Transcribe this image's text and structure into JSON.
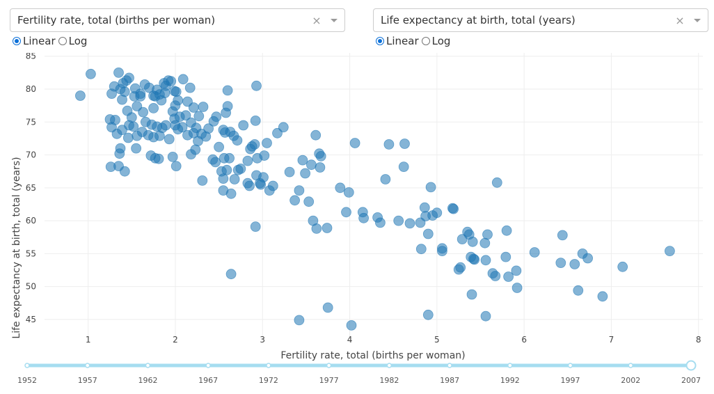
{
  "controls": {
    "x_dropdown": {
      "value": "Fertility rate, total (births per woman)",
      "clear": "×"
    },
    "y_dropdown": {
      "value": "Life expectancy at birth, total (years)",
      "clear": "×"
    },
    "x_scale": {
      "linear_label": "Linear",
      "log_label": "Log",
      "selected": "Linear"
    },
    "y_scale": {
      "linear_label": "Linear",
      "log_label": "Log",
      "selected": "Linear"
    }
  },
  "colors": {
    "point": "#1f77b4",
    "slider_track": "#a6ddf0",
    "slider_handle": "#a6ddf0",
    "grid": "#eeeeee"
  },
  "slider": {
    "marks": [
      "1952",
      "1957",
      "1962",
      "1967",
      "1972",
      "1977",
      "1982",
      "1987",
      "1992",
      "1997",
      "2002",
      "2007"
    ],
    "selected": "2007"
  },
  "chart_data": {
    "type": "scatter",
    "title": "",
    "xlabel": "Fertility rate, total (births per woman)",
    "ylabel": "Life expectancy at birth, total (years)",
    "xlim": [
      0.5,
      8.05
    ],
    "ylim": [
      41.5,
      85.5
    ],
    "xticks": [
      1,
      2,
      3,
      4,
      5,
      6,
      7,
      8
    ],
    "yticks": [
      45,
      50,
      55,
      60,
      65,
      70,
      75,
      80,
      85
    ],
    "points": [
      [
        0.91,
        79.0
      ],
      [
        1.03,
        82.3
      ],
      [
        1.27,
        79.3
      ],
      [
        1.3,
        80.4
      ],
      [
        1.35,
        82.5
      ],
      [
        1.37,
        80.0
      ],
      [
        1.4,
        80.9
      ],
      [
        1.44,
        81.3
      ],
      [
        1.47,
        81.7
      ],
      [
        1.39,
        78.4
      ],
      [
        1.42,
        79.6
      ],
      [
        1.53,
        78.9
      ],
      [
        1.54,
        80.1
      ],
      [
        1.6,
        79.3
      ],
      [
        1.65,
        80.7
      ],
      [
        1.7,
        80.2
      ],
      [
        1.75,
        79.0
      ],
      [
        1.79,
        79.9
      ],
      [
        1.82,
        79.2
      ],
      [
        1.87,
        80.9
      ],
      [
        1.89,
        80.5
      ],
      [
        1.92,
        81.3
      ],
      [
        1.95,
        81.2
      ],
      [
        1.99,
        79.7
      ],
      [
        2.03,
        78.3
      ],
      [
        2.09,
        81.5
      ],
      [
        2.17,
        80.2
      ],
      [
        1.88,
        79.4
      ],
      [
        1.84,
        78.3
      ],
      [
        1.77,
        78.9
      ],
      [
        1.25,
        75.4
      ],
      [
        1.27,
        74.2
      ],
      [
        1.31,
        75.3
      ],
      [
        1.33,
        73.2
      ],
      [
        1.39,
        73.8
      ],
      [
        1.45,
        76.7
      ],
      [
        1.47,
        74.5
      ],
      [
        1.5,
        75.7
      ],
      [
        1.52,
        74.3
      ],
      [
        1.56,
        72.9
      ],
      [
        1.62,
        73.5
      ],
      [
        1.63,
        76.5
      ],
      [
        1.66,
        75.0
      ],
      [
        1.69,
        73.0
      ],
      [
        1.73,
        74.6
      ],
      [
        1.75,
        72.7
      ],
      [
        1.79,
        74.3
      ],
      [
        1.82,
        72.9
      ],
      [
        1.85,
        74.1
      ],
      [
        1.89,
        74.5
      ],
      [
        1.93,
        72.4
      ],
      [
        1.97,
        76.6
      ],
      [
        1.99,
        75.5
      ],
      [
        2.0,
        74.5
      ],
      [
        2.03,
        73.9
      ],
      [
        2.05,
        75.8
      ],
      [
        2.08,
        74.2
      ],
      [
        2.12,
        76.0
      ],
      [
        2.14,
        73.0
      ],
      [
        2.18,
        74.9
      ],
      [
        2.21,
        73.3
      ],
      [
        2.24,
        74.1
      ],
      [
        2.27,
        75.9
      ],
      [
        2.3,
        73.2
      ],
      [
        2.32,
        77.3
      ],
      [
        2.35,
        72.8
      ],
      [
        2.38,
        74.0
      ],
      [
        2.44,
        75.1
      ],
      [
        2.47,
        75.8
      ],
      [
        2.55,
        73.8
      ],
      [
        2.57,
        73.4
      ],
      [
        2.6,
        77.4
      ],
      [
        2.63,
        73.5
      ],
      [
        2.67,
        72.9
      ],
      [
        2.71,
        72.2
      ],
      [
        2.78,
        74.5
      ],
      [
        2.92,
        75.2
      ],
      [
        3.05,
        71.8
      ],
      [
        3.17,
        73.3
      ],
      [
        3.24,
        74.2
      ],
      [
        2.93,
        80.5
      ],
      [
        2.6,
        79.8
      ],
      [
        2.58,
        76.4
      ],
      [
        2.21,
        77.2
      ],
      [
        2.14,
        78.1
      ],
      [
        2.01,
        79.6
      ],
      [
        2.0,
        77.5
      ],
      [
        1.75,
        77.1
      ],
      [
        1.6,
        78.9
      ],
      [
        1.56,
        77.4
      ],
      [
        1.26,
        68.2
      ],
      [
        1.35,
        68.3
      ],
      [
        1.42,
        67.5
      ],
      [
        1.36,
        70.2
      ],
      [
        1.37,
        71.0
      ],
      [
        1.46,
        72.6
      ],
      [
        1.55,
        71.0
      ],
      [
        1.72,
        69.9
      ],
      [
        1.77,
        69.5
      ],
      [
        1.81,
        69.4
      ],
      [
        1.97,
        69.7
      ],
      [
        2.01,
        68.3
      ],
      [
        2.18,
        70.1
      ],
      [
        2.23,
        70.8
      ],
      [
        2.26,
        72.1
      ],
      [
        2.31,
        66.1
      ],
      [
        2.43,
        69.3
      ],
      [
        2.46,
        68.9
      ],
      [
        2.5,
        71.2
      ],
      [
        2.53,
        67.5
      ],
      [
        2.55,
        66.4
      ],
      [
        2.59,
        67.7
      ],
      [
        2.56,
        69.5
      ],
      [
        2.62,
        69.5
      ],
      [
        2.64,
        64.1
      ],
      [
        2.55,
        64.6
      ],
      [
        2.68,
        66.3
      ],
      [
        2.72,
        67.7
      ],
      [
        2.75,
        67.9
      ],
      [
        2.83,
        69.1
      ],
      [
        2.86,
        70.9
      ],
      [
        2.88,
        71.3
      ],
      [
        2.91,
        71.6
      ],
      [
        2.94,
        69.5
      ],
      [
        2.93,
        66.9
      ],
      [
        2.98,
        65.5
      ],
      [
        3.01,
        66.6
      ],
      [
        3.02,
        69.9
      ],
      [
        3.08,
        64.6
      ],
      [
        3.12,
        65.3
      ],
      [
        2.97,
        65.7
      ],
      [
        2.83,
        65.7
      ],
      [
        2.85,
        65.3
      ],
      [
        2.64,
        51.9
      ],
      [
        2.92,
        59.1
      ],
      [
        3.31,
        67.4
      ],
      [
        3.37,
        63.1
      ],
      [
        3.42,
        64.6
      ],
      [
        3.46,
        69.2
      ],
      [
        3.49,
        67.2
      ],
      [
        3.53,
        62.9
      ],
      [
        3.56,
        68.5
      ],
      [
        3.61,
        73.0
      ],
      [
        3.65,
        70.2
      ],
      [
        3.67,
        69.8
      ],
      [
        3.66,
        68.1
      ],
      [
        3.58,
        60.0
      ],
      [
        3.62,
        58.8
      ],
      [
        3.74,
        58.9
      ],
      [
        3.89,
        65.0
      ],
      [
        3.99,
        64.3
      ],
      [
        3.96,
        61.3
      ],
      [
        4.06,
        71.8
      ],
      [
        4.15,
        61.3
      ],
      [
        4.16,
        60.4
      ],
      [
        4.32,
        60.5
      ],
      [
        4.35,
        59.7
      ],
      [
        4.41,
        66.3
      ],
      [
        4.45,
        71.6
      ],
      [
        4.56,
        60.0
      ],
      [
        4.62,
        68.2
      ],
      [
        4.63,
        71.7
      ],
      [
        4.69,
        59.6
      ],
      [
        4.81,
        59.7
      ],
      [
        4.86,
        62.0
      ],
      [
        4.87,
        60.7
      ],
      [
        4.9,
        58.0
      ],
      [
        4.93,
        65.1
      ],
      [
        4.95,
        60.8
      ],
      [
        5.0,
        61.2
      ],
      [
        4.82,
        55.7
      ],
      [
        5.06,
        55.8
      ],
      [
        5.06,
        55.4
      ],
      [
        5.18,
        61.9
      ],
      [
        5.19,
        61.8
      ],
      [
        5.27,
        52.9
      ],
      [
        5.29,
        57.2
      ],
      [
        5.25,
        52.6
      ],
      [
        5.35,
        58.3
      ],
      [
        5.37,
        57.9
      ],
      [
        5.41,
        56.8
      ],
      [
        5.39,
        54.5
      ],
      [
        5.42,
        54.2
      ],
      [
        5.43,
        54.1
      ],
      [
        5.55,
        56.6
      ],
      [
        5.58,
        57.9
      ],
      [
        5.56,
        54.0
      ],
      [
        5.64,
        52.0
      ],
      [
        5.67,
        51.6
      ],
      [
        5.69,
        65.8
      ],
      [
        5.8,
        58.5
      ],
      [
        5.82,
        51.5
      ],
      [
        5.79,
        54.5
      ],
      [
        5.91,
        52.4
      ],
      [
        5.92,
        49.8
      ],
      [
        6.12,
        55.2
      ],
      [
        6.42,
        53.6
      ],
      [
        6.44,
        57.8
      ],
      [
        6.58,
        53.4
      ],
      [
        6.67,
        55.0
      ],
      [
        6.62,
        49.4
      ],
      [
        6.73,
        54.3
      ],
      [
        6.9,
        48.5
      ],
      [
        7.13,
        53.0
      ],
      [
        7.67,
        55.4
      ],
      [
        5.4,
        48.8
      ],
      [
        5.56,
        45.5
      ],
      [
        4.9,
        45.7
      ],
      [
        3.42,
        44.9
      ],
      [
        3.75,
        46.8
      ],
      [
        4.02,
        44.1
      ]
    ]
  }
}
